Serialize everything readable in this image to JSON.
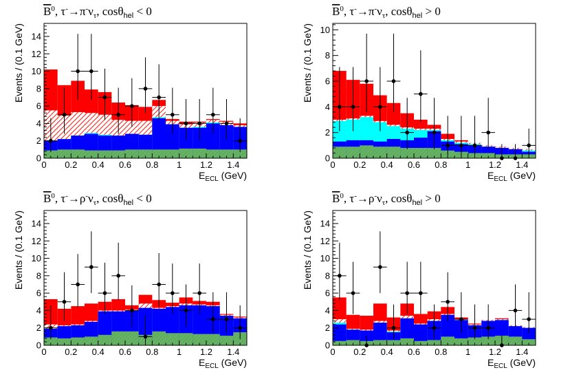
{
  "chart_data": [
    {
      "type": "bar",
      "title": {
        "pre": "B",
        "sup0": "0",
        "mid": ", τ",
        "supminus": "-",
        "arrow": "→π",
        "sup2": "-",
        "nu": "ν",
        "sub": "τ",
        "post": ", cosθ",
        "hel": "hel",
        "cond": " < 0"
      },
      "xlabel": "E",
      "xlabel_sub": "ECL",
      "xlabel_unit": " (GeV)",
      "ylabel": "Events / (0.1 GeV)",
      "xlim": [
        0,
        1.5
      ],
      "ylim": [
        0,
        15.5
      ],
      "xticks": [
        "0",
        "0.2",
        "0.4",
        "0.6",
        "0.8",
        "1",
        "1.2",
        "1.4"
      ],
      "yticks": [
        "0",
        "2",
        "4",
        "6",
        "8",
        "10",
        "12",
        "14"
      ],
      "bin_edges": [
        0,
        0.1,
        0.2,
        0.3,
        0.4,
        0.5,
        0.6,
        0.7,
        0.8,
        0.9,
        1.0,
        1.1,
        1.2,
        1.3,
        1.4,
        1.5
      ],
      "series": [
        {
          "name": "green",
          "values": [
            0.9,
            1.0,
            1.0,
            0.9,
            0.9,
            0.9,
            1.0,
            1.0,
            1.0,
            1.0,
            1.1,
            1.1,
            1.0,
            1.0,
            1.0
          ]
        },
        {
          "name": "blue",
          "values": [
            2.0,
            2.2,
            2.6,
            2.8,
            2.6,
            2.6,
            2.8,
            2.7,
            4.6,
            3.9,
            3.5,
            3.5,
            4.0,
            3.8,
            3.6
          ]
        },
        {
          "name": "cyan",
          "values": [
            2.0,
            2.2,
            2.6,
            2.9,
            2.7,
            2.6,
            2.8,
            2.7,
            4.7,
            3.9,
            3.5,
            3.6,
            4.1,
            3.8,
            3.6
          ]
        },
        {
          "name": "hatched",
          "values": [
            5.5,
            4.9,
            5.3,
            5.2,
            5.0,
            4.4,
            4.3,
            4.3,
            6.0,
            4.3,
            3.9,
            4.1,
            4.4,
            4.2,
            3.8
          ]
        },
        {
          "name": "red",
          "values": [
            10.2,
            8.4,
            8.9,
            7.9,
            7.6,
            6.4,
            6.1,
            5.9,
            6.7,
            4.5,
            4.2,
            4.2,
            4.5,
            4.3,
            4.0
          ]
        }
      ],
      "data_points": [
        {
          "x": 0.05,
          "y": 2,
          "lo": 0.7,
          "hi": 4.6
        },
        {
          "x": 0.15,
          "y": 5,
          "lo": 2.8,
          "hi": 8.1
        },
        {
          "x": 0.25,
          "y": 10,
          "lo": 6.7,
          "hi": 14.3
        },
        {
          "x": 0.35,
          "y": 10,
          "lo": 6.7,
          "hi": 14.3
        },
        {
          "x": 0.45,
          "y": 7,
          "lo": 4.4,
          "hi": 10.3
        },
        {
          "x": 0.55,
          "y": 5,
          "lo": 2.8,
          "hi": 8.1
        },
        {
          "x": 0.65,
          "y": 6,
          "lo": 3.6,
          "hi": 9.2
        },
        {
          "x": 0.75,
          "y": 8,
          "lo": 5.2,
          "hi": 11.6
        },
        {
          "x": 0.85,
          "y": 7,
          "lo": 4.4,
          "hi": 10.8
        },
        {
          "x": 0.95,
          "y": 5,
          "lo": 2.8,
          "hi": 8.1
        },
        {
          "x": 1.05,
          "y": 4,
          "lo": 2.1,
          "hi": 6.8
        },
        {
          "x": 1.15,
          "y": 4,
          "lo": 2.1,
          "hi": 6.8
        },
        {
          "x": 1.25,
          "y": 5,
          "lo": 2.8,
          "hi": 8.1
        },
        {
          "x": 1.35,
          "y": 4,
          "lo": 2.1,
          "hi": 6.8
        },
        {
          "x": 1.45,
          "y": 2,
          "lo": 0.7,
          "hi": 4.6
        }
      ]
    },
    {
      "type": "bar",
      "title": {
        "pre": "B",
        "sup0": "0",
        "mid": ", τ",
        "supminus": "-",
        "arrow": "→π",
        "sup2": "-",
        "nu": "ν",
        "sub": "τ",
        "post": ", cosθ",
        "hel": "hel",
        "cond": " > 0"
      },
      "xlabel": "E",
      "xlabel_sub": "ECL",
      "xlabel_unit": " (GeV)",
      "ylabel": "Events / (0.1 GeV)",
      "xlim": [
        0,
        1.5
      ],
      "ylim": [
        0,
        10.5
      ],
      "xticks": [
        "0",
        "0.2",
        "0.4",
        "0.6",
        "0.8",
        "1",
        "1.2",
        "1.4"
      ],
      "yticks": [
        "0",
        "2",
        "4",
        "6",
        "8",
        "10"
      ],
      "bin_edges": [
        0,
        0.1,
        0.2,
        0.3,
        0.4,
        0.5,
        0.6,
        0.7,
        0.8,
        0.9,
        1.0,
        1.1,
        1.2,
        1.3,
        1.4,
        1.5
      ],
      "series": [
        {
          "name": "green",
          "values": [
            0.9,
            0.9,
            1.0,
            0.9,
            0.9,
            0.8,
            0.8,
            0.8,
            0.6,
            0.5,
            0.4,
            0.4,
            0.3,
            0.3,
            0.3
          ]
        },
        {
          "name": "blue",
          "values": [
            1.3,
            1.4,
            1.4,
            1.3,
            1.5,
            1.4,
            1.6,
            2.1,
            1.3,
            1.1,
            1.0,
            0.9,
            0.8,
            0.7,
            0.5
          ]
        },
        {
          "name": "cyan",
          "values": [
            2.9,
            3.0,
            3.2,
            2.8,
            2.5,
            2.3,
            2.2,
            2.2,
            1.4,
            1.2,
            1.1,
            0.9,
            0.8,
            0.7,
            0.6
          ]
        },
        {
          "name": "hatched",
          "values": [
            3.0,
            3.1,
            3.3,
            2.9,
            2.6,
            2.4,
            2.3,
            2.3,
            1.5,
            1.3,
            1.2,
            1.0,
            0.9,
            0.8,
            0.7
          ]
        },
        {
          "name": "red",
          "values": [
            6.8,
            6.1,
            5.8,
            4.9,
            4.3,
            3.5,
            3.0,
            2.6,
            1.9,
            1.4,
            1.2,
            1.0,
            0.9,
            0.8,
            0.7
          ]
        }
      ],
      "data_points": [
        {
          "x": 0.05,
          "y": 4,
          "lo": 2.1,
          "hi": 7.1
        },
        {
          "x": 0.15,
          "y": 4,
          "lo": 2.1,
          "hi": 7.1
        },
        {
          "x": 0.25,
          "y": 6,
          "lo": 3.6,
          "hi": 9.7
        },
        {
          "x": 0.35,
          "y": 4,
          "lo": 2.1,
          "hi": 7.1
        },
        {
          "x": 0.45,
          "y": 6,
          "lo": 3.6,
          "hi": 9.7
        },
        {
          "x": 0.55,
          "y": 2,
          "lo": 0.7,
          "hi": 4.7
        },
        {
          "x": 0.65,
          "y": 5,
          "lo": 2.8,
          "hi": 8.4
        },
        {
          "x": 0.75,
          "y": 2,
          "lo": 0.7,
          "hi": 4.7
        },
        {
          "x": 0.85,
          "y": 1,
          "lo": 0.2,
          "hi": 3.3
        },
        {
          "x": 0.95,
          "y": 1,
          "lo": 0.2,
          "hi": 3.3
        },
        {
          "x": 1.05,
          "y": 1,
          "lo": 0.2,
          "hi": 3.3
        },
        {
          "x": 1.15,
          "y": 2,
          "lo": 0.7,
          "hi": 4.7
        },
        {
          "x": 1.25,
          "y": 0,
          "lo": 0,
          "hi": 1.1
        },
        {
          "x": 1.35,
          "y": 0,
          "lo": 0,
          "hi": 1.1
        },
        {
          "x": 1.45,
          "y": 1,
          "lo": 0.2,
          "hi": 2.3
        }
      ]
    },
    {
      "type": "bar",
      "title": {
        "pre": "B",
        "sup0": "0",
        "mid": ", τ",
        "supminus": "-",
        "arrow": "→ρ",
        "sup2": "-",
        "nu": "ν",
        "sub": "τ",
        "post": ", cosθ",
        "hel": "hel",
        "cond": " < 0"
      },
      "xlabel": "E",
      "xlabel_sub": "ECL",
      "xlabel_unit": " (GeV)",
      "ylabel": "Events / (0.1 GeV)",
      "xlim": [
        0,
        1.5
      ],
      "ylim": [
        0,
        15.5
      ],
      "xticks": [
        "0",
        "0.2",
        "0.4",
        "0.6",
        "0.8",
        "1",
        "1.2",
        "1.4"
      ],
      "yticks": [
        "0",
        "2",
        "4",
        "6",
        "8",
        "10",
        "12",
        "14"
      ],
      "bin_edges": [
        0,
        0.1,
        0.2,
        0.3,
        0.4,
        0.5,
        0.6,
        0.7,
        0.8,
        0.9,
        1.0,
        1.1,
        1.2,
        1.3,
        1.4,
        1.5
      ],
      "series": [
        {
          "name": "green",
          "values": [
            0.9,
            0.8,
            0.9,
            1.0,
            1.2,
            1.6,
            1.6,
            1.2,
            1.6,
            1.4,
            1.4,
            1.3,
            1.3,
            1.1,
            1.5
          ]
        },
        {
          "name": "blue",
          "values": [
            1.9,
            2.2,
            2.3,
            2.7,
            3.9,
            3.9,
            4.0,
            4.3,
            4.2,
            4.4,
            4.6,
            4.6,
            4.5,
            3.4,
            3.1
          ]
        },
        {
          "name": "cyan",
          "values": [
            1.9,
            2.2,
            2.3,
            2.7,
            3.9,
            3.9,
            4.0,
            4.3,
            4.2,
            4.4,
            4.6,
            4.6,
            4.5,
            3.4,
            3.1
          ]
        },
        {
          "name": "hatched",
          "values": [
            2.4,
            2.3,
            2.4,
            2.8,
            4.0,
            4.0,
            4.1,
            4.8,
            4.3,
            4.5,
            4.8,
            4.7,
            4.6,
            3.5,
            3.2
          ]
        },
        {
          "name": "red",
          "values": [
            5.3,
            4.2,
            4.5,
            4.8,
            5.0,
            5.3,
            4.6,
            5.8,
            5.2,
            4.9,
            5.5,
            5.1,
            5.0,
            3.6,
            3.3
          ]
        }
      ],
      "data_points": [
        {
          "x": 0.05,
          "y": 2,
          "lo": 0.7,
          "hi": 4.6
        },
        {
          "x": 0.15,
          "y": 5,
          "lo": 2.8,
          "hi": 8.4
        },
        {
          "x": 0.25,
          "y": 7,
          "lo": 4.4,
          "hi": 10.5
        },
        {
          "x": 0.35,
          "y": 9,
          "lo": 6.0,
          "hi": 13.1
        },
        {
          "x": 0.45,
          "y": 6,
          "lo": 3.6,
          "hi": 9.5
        },
        {
          "x": 0.55,
          "y": 8,
          "lo": 5.2,
          "hi": 11.8
        },
        {
          "x": 0.65,
          "y": 4,
          "lo": 2.1,
          "hi": 6.9
        },
        {
          "x": 0.75,
          "y": 1,
          "lo": 0.2,
          "hi": 3.4
        },
        {
          "x": 0.85,
          "y": 7,
          "lo": 4.4,
          "hi": 10.6
        },
        {
          "x": 0.95,
          "y": 6,
          "lo": 3.6,
          "hi": 9.4
        },
        {
          "x": 1.05,
          "y": 4,
          "lo": 2.1,
          "hi": 7.0
        },
        {
          "x": 1.15,
          "y": 6,
          "lo": 3.6,
          "hi": 9.4
        },
        {
          "x": 1.25,
          "y": 3,
          "lo": 1.4,
          "hi": 6.1
        },
        {
          "x": 1.35,
          "y": 3,
          "lo": 1.4,
          "hi": 6.1
        },
        {
          "x": 1.45,
          "y": 2,
          "lo": 0.7,
          "hi": 4.6
        }
      ]
    },
    {
      "type": "bar",
      "title": {
        "pre": "B",
        "sup0": "0",
        "mid": ", τ",
        "supminus": "-",
        "arrow": "→ρ",
        "sup2": "-",
        "nu": "ν",
        "sub": "τ",
        "post": ", cosθ",
        "hel": "hel",
        "cond": " > 0"
      },
      "xlabel": "E",
      "xlabel_sub": "ECL",
      "xlabel_unit": " (GeV)",
      "ylabel": "Events / (0.1 GeV)",
      "xlim": [
        0,
        1.5
      ],
      "ylim": [
        0,
        15.5
      ],
      "xticks": [
        "0",
        "0.2",
        "0.4",
        "0.6",
        "0.8",
        "1",
        "1.2",
        "1.4"
      ],
      "yticks": [
        "0",
        "2",
        "4",
        "6",
        "8",
        "10",
        "12",
        "14"
      ],
      "bin_edges": [
        0,
        0.1,
        0.2,
        0.3,
        0.4,
        0.5,
        0.6,
        0.7,
        0.8,
        0.9,
        1.0,
        1.1,
        1.2,
        1.3,
        1.4,
        1.5
      ],
      "series": [
        {
          "name": "green",
          "values": [
            0.5,
            0.6,
            0.5,
            0.6,
            0.6,
            0.8,
            0.5,
            0.6,
            1.0,
            0.8,
            0.9,
            1.0,
            1.1,
            1.0,
            0.7
          ]
        },
        {
          "name": "blue",
          "values": [
            2.4,
            1.8,
            1.7,
            2.6,
            1.5,
            3.1,
            2.4,
            2.8,
            3.5,
            2.9,
            2.3,
            2.8,
            2.9,
            2.2,
            2.0
          ]
        },
        {
          "name": "cyan",
          "values": [
            2.6,
            1.8,
            1.7,
            2.6,
            1.6,
            3.1,
            2.4,
            2.8,
            3.5,
            2.9,
            2.3,
            2.8,
            2.9,
            2.2,
            2.0
          ]
        },
        {
          "name": "hatched",
          "values": [
            3.0,
            1.9,
            1.8,
            2.8,
            1.7,
            3.4,
            2.5,
            3.0,
            3.6,
            3.0,
            2.4,
            2.9,
            3.0,
            2.3,
            2.1
          ]
        },
        {
          "name": "red",
          "values": [
            5.5,
            3.5,
            3.4,
            4.8,
            3.2,
            4.8,
            3.6,
            3.9,
            4.4,
            3.2,
            2.5,
            2.9,
            3.1,
            2.3,
            2.1
          ]
        }
      ],
      "data_points": [
        {
          "x": 0.05,
          "y": 8,
          "lo": 5.2,
          "hi": 11.8
        },
        {
          "x": 0.15,
          "y": 6,
          "lo": 3.6,
          "hi": 9.6
        },
        {
          "x": 0.25,
          "y": 0,
          "lo": 0,
          "hi": 1.1
        },
        {
          "x": 0.35,
          "y": 9,
          "lo": 6.0,
          "hi": 13.1
        },
        {
          "x": 0.45,
          "y": 2,
          "lo": 0.7,
          "hi": 4.7
        },
        {
          "x": 0.55,
          "y": 6,
          "lo": 3.6,
          "hi": 9.6
        },
        {
          "x": 0.65,
          "y": 6,
          "lo": 3.6,
          "hi": 9.6
        },
        {
          "x": 0.75,
          "y": 2,
          "lo": 0.7,
          "hi": 4.7
        },
        {
          "x": 0.85,
          "y": 5,
          "lo": 2.8,
          "hi": 8.4
        },
        {
          "x": 0.95,
          "y": 3,
          "lo": 1.4,
          "hi": 6.1
        },
        {
          "x": 1.05,
          "y": 2,
          "lo": 0.7,
          "hi": 4.7
        },
        {
          "x": 1.15,
          "y": 2,
          "lo": 0.7,
          "hi": 4.7
        },
        {
          "x": 1.25,
          "y": 0,
          "lo": 0,
          "hi": 1.1
        },
        {
          "x": 1.35,
          "y": 4,
          "lo": 2.1,
          "hi": 7.0
        },
        {
          "x": 1.45,
          "y": 3,
          "lo": 1.4,
          "hi": 6.1
        }
      ]
    }
  ],
  "colors": {
    "red": "#ff0000",
    "hatch_bg": "#ffffff",
    "hatch_line": "#ee2a1f",
    "cyan": "#00ffff",
    "blue": "#0000ff",
    "green": "#66b366",
    "green_line": "#4d994d",
    "marker": "#000000"
  }
}
